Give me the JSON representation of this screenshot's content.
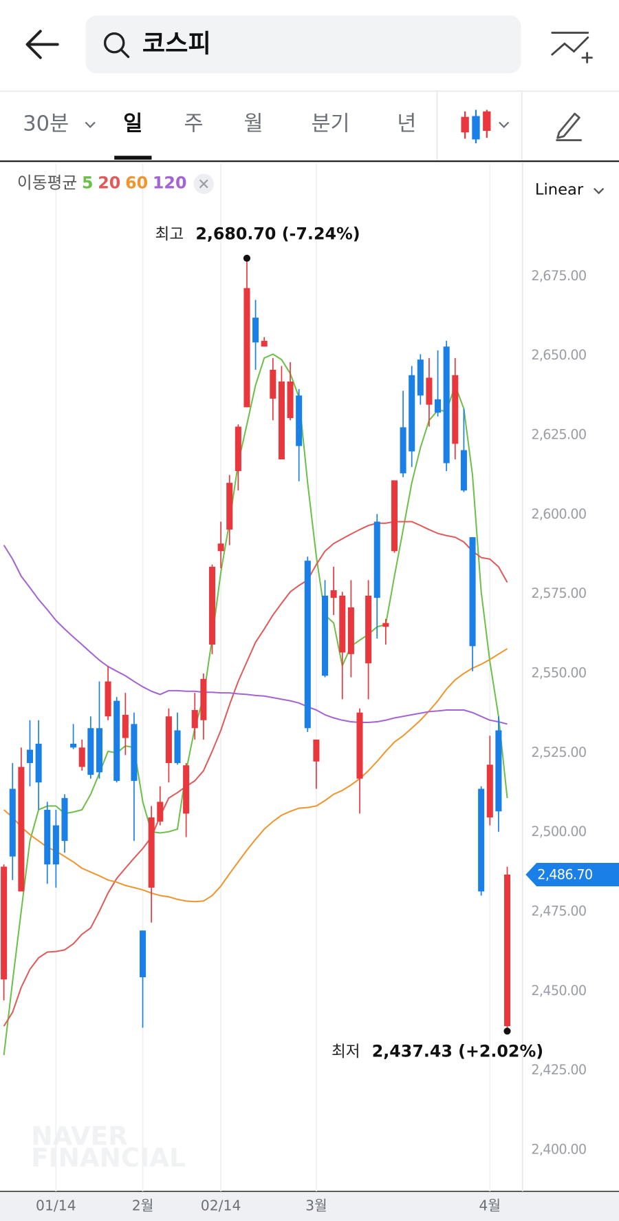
{
  "header": {
    "search_text": "코스피"
  },
  "tabs": {
    "items": [
      "30분",
      "일",
      "주",
      "월",
      "분기",
      "년"
    ],
    "selected": "일"
  },
  "chart_data": {
    "type": "candlestick",
    "scale": "Linear",
    "ma_legend_title": "이동평균",
    "watermark": [
      "NAVER",
      "FINANCIAL"
    ],
    "up_color": "#e8383d",
    "down_color": "#1a7fe6",
    "categories": [
      null,
      null,
      null,
      null,
      null,
      null,
      "01/14",
      null,
      null,
      null,
      null,
      null,
      null,
      null,
      null,
      null,
      "2월",
      null,
      null,
      null,
      null,
      null,
      null,
      null,
      null,
      "02/14",
      null,
      null,
      null,
      null,
      null,
      null,
      null,
      null,
      null,
      null,
      "3월",
      null,
      null,
      null,
      null,
      null,
      null,
      null,
      null,
      null,
      null,
      null,
      null,
      null,
      null,
      null,
      null,
      null,
      null,
      null,
      "4월",
      null,
      null
    ],
    "open": [
      2453.7,
      2513.7,
      2481.4,
      2526.0,
      2527.9,
      2507.1,
      2502.2,
      2510.8,
      2527.9,
      2520.6,
      2532.8,
      2532.8,
      2536.5,
      2541.4,
      2529.7,
      2534.1,
      2469.1,
      2482.6,
      2503.4,
      2521.8,
      2532.1,
      2505.9,
      2532.8,
      2535.3,
      2559.1,
      2588.5,
      2595.3,
      2613.7,
      2633.8,
      2662.0,
      2652.9,
      2636.5,
      2617.4,
      2630.4,
      2637.5,
      2585.5,
      2522.3,
      2574.5,
      2573.8,
      2556.6,
      2556.1,
      2516.9,
      2553.2,
      2597.8,
      2564.7,
      2588.5,
      2627.5,
      2643.9,
      2648.8,
      2634.6,
      2636.3,
      2652.9,
      2622.3,
      2620.3,
      2592.9,
      2513.7,
      2504.7,
      2532.1,
      2439.0
    ],
    "high": [
      2489.9,
      2521.8,
      2526.7,
      2535.3,
      2535.3,
      2509.6,
      2507.1,
      2512.0,
      2534.1,
      2529.2,
      2536.5,
      2547.5,
      2552.4,
      2542.6,
      2543.9,
      2537.7,
      2469.1,
      2508.3,
      2514.5,
      2539.0,
      2537.7,
      2521.8,
      2543.9,
      2550.0,
      2584.3,
      2597.8,
      2612.5,
      2628.4,
      2680.7,
      2667.6,
      2655.9,
      2649.3,
      2646.8,
      2648.0,
      2639.5,
      2586.8,
      2529.2,
      2579.4,
      2583.6,
      2575.7,
      2579.4,
      2539.0,
      2579.4,
      2600.2,
      2567.2,
      2610.8,
      2639.0,
      2646.8,
      2650.5,
      2649.3,
      2651.7,
      2654.7,
      2649.3,
      2633.3,
      2592.9,
      2514.5,
      2530.4,
      2536.5,
      2489.2
    ],
    "low": [
      2447.1,
      2485.0,
      2481.4,
      2514.5,
      2507.1,
      2483.8,
      2482.6,
      2493.6,
      2526.2,
      2519.4,
      2516.9,
      2516.9,
      2535.3,
      2515.7,
      2524.3,
      2497.3,
      2438.5,
      2471.6,
      2502.2,
      2515.7,
      2521.3,
      2498.5,
      2529.2,
      2529.2,
      2556.1,
      2583.1,
      2590.4,
      2607.6,
      2633.8,
      2645.6,
      2652.9,
      2629.7,
      2617.4,
      2629.7,
      2610.5,
      2531.6,
      2513.7,
      2548.8,
      2568.4,
      2541.9,
      2548.8,
      2505.9,
      2541.9,
      2561.0,
      2559.1,
      2588.0,
      2611.8,
      2615.0,
      2634.6,
      2627.7,
      2630.9,
      2613.7,
      2617.4,
      2607.1,
      2550.7,
      2480.1,
      2502.2,
      2500.2,
      2437.43
    ],
    "close": [
      2489.2,
      2492.4,
      2520.6,
      2521.8,
      2515.7,
      2489.9,
      2489.9,
      2497.3,
      2526.7,
      2526.7,
      2518.1,
      2518.9,
      2547.5,
      2516.2,
      2537.0,
      2516.2,
      2454.4,
      2504.7,
      2509.6,
      2536.5,
      2521.8,
      2521.1,
      2538.5,
      2548.3,
      2583.6,
      2590.9,
      2610.0,
      2627.7,
      2671.3,
      2654.2,
      2654.7,
      2645.6,
      2641.9,
      2641.9,
      2621.6,
      2532.8,
      2529.2,
      2549.3,
      2576.2,
      2574.5,
      2570.8,
      2537.7,
      2574.5,
      2573.8,
      2565.9,
      2610.8,
      2613.0,
      2619.9,
      2637.5,
      2643.1,
      2632.1,
      2616.2,
      2643.9,
      2607.6,
      2558.6,
      2481.4,
      2521.3,
      2506.6,
      2486.7
    ],
    "series": [
      {
        "name": "5",
        "color": "#6cc04a",
        "values": [
          2429.9,
          2453.2,
          2475.2,
          2497.3,
          2507.1,
          2508.3,
          2508.3,
          2505.9,
          2506.4,
          2507.1,
          2512.0,
          2518.6,
          2525.5,
          2525.0,
          2527.2,
          2526.7,
          2509.6,
          2500.2,
          2499.8,
          2500.2,
          2501.0,
          2519.4,
          2532.8,
          2542.6,
          2561.0,
          2581.9,
          2597.8,
          2616.2,
          2628.4,
          2640.7,
          2649.3,
          2650.5,
          2648.8,
          2644.4,
          2637.0,
          2610.0,
          2586.8,
          2568.4,
          2565.9,
          2552.4,
          2558.6,
          2560.5,
          2562.3,
          2564.7,
          2565.4,
          2580.6,
          2595.3,
          2610.0,
          2621.1,
          2629.7,
          2632.8,
          2632.6,
          2640.7,
          2633.3,
          2612.5,
          2575.7,
          2553.7,
          2536.5,
          2510.8
        ]
      },
      {
        "name": "20",
        "color": "#e05a5a",
        "values": [
          2439.0,
          2443.4,
          2451.2,
          2456.9,
          2460.5,
          2462.3,
          2462.5,
          2463.0,
          2464.9,
          2467.9,
          2469.9,
          2475.2,
          2480.9,
          2485.5,
          2488.7,
          2491.9,
          2494.9,
          2498.5,
          2505.1,
          2510.8,
          2512.5,
          2514.5,
          2516.2,
          2519.4,
          2525.5,
          2532.1,
          2540.2,
          2547.5,
          2553.7,
          2559.8,
          2564.0,
          2568.4,
          2572.1,
          2575.7,
          2577.7,
          2579.4,
          2584.3,
          2588.5,
          2590.9,
          2592.4,
          2593.9,
          2595.3,
          2596.6,
          2597.3,
          2597.3,
          2597.8,
          2597.8,
          2597.8,
          2596.6,
          2595.3,
          2594.1,
          2593.4,
          2592.9,
          2591.4,
          2588.5,
          2586.5,
          2586.0,
          2583.6,
          2578.7
        ]
      },
      {
        "name": "60",
        "color": "#f0952e",
        "values": [
          2507.1,
          2504.7,
          2501.7,
          2499.3,
          2497.3,
          2495.3,
          2494.1,
          2492.4,
          2490.7,
          2488.7,
          2487.5,
          2486.3,
          2485.0,
          2484.3,
          2483.3,
          2482.6,
          2481.9,
          2480.9,
          2480.1,
          2479.7,
          2478.9,
          2478.4,
          2478.2,
          2478.4,
          2480.1,
          2483.1,
          2487.0,
          2490.7,
          2494.4,
          2497.8,
          2501.0,
          2503.4,
          2505.4,
          2506.6,
          2507.6,
          2507.8,
          2508.3,
          2510.0,
          2512.0,
          2513.2,
          2514.9,
          2516.9,
          2519.4,
          2522.3,
          2525.5,
          2528.4,
          2530.4,
          2532.8,
          2535.3,
          2538.2,
          2541.4,
          2545.1,
          2548.0,
          2550.0,
          2551.7,
          2552.9,
          2554.4,
          2556.1,
          2557.8
        ]
      },
      {
        "name": "120",
        "color": "#a463d2",
        "values": [
          2590.4,
          2586.0,
          2580.6,
          2577.0,
          2573.3,
          2570.1,
          2566.7,
          2564.0,
          2561.5,
          2559.1,
          2556.6,
          2554.2,
          2552.2,
          2550.7,
          2549.3,
          2547.5,
          2545.8,
          2544.4,
          2543.4,
          2544.6,
          2544.6,
          2544.4,
          2544.4,
          2544.1,
          2544.1,
          2543.9,
          2543.9,
          2543.6,
          2543.4,
          2543.1,
          2542.9,
          2542.4,
          2541.9,
          2541.4,
          2540.7,
          2539.5,
          2538.5,
          2537.0,
          2536.0,
          2535.3,
          2534.8,
          2534.6,
          2534.6,
          2534.8,
          2535.3,
          2536.0,
          2536.5,
          2537.0,
          2537.5,
          2538.0,
          2538.2,
          2538.5,
          2538.5,
          2538.5,
          2537.7,
          2536.5,
          2535.3,
          2534.8,
          2534.1
        ]
      }
    ],
    "ylim": [
      2387.0,
      2710.5
    ],
    "yticks": [
      {
        "value": 2400,
        "label": "2,400.00"
      },
      {
        "value": 2425,
        "label": "2,425.00"
      },
      {
        "value": 2450,
        "label": "2,450.00"
      },
      {
        "value": 2475,
        "label": "2,475.00"
      },
      {
        "value": 2500,
        "label": "2,500.00"
      },
      {
        "value": 2525,
        "label": "2,525.00"
      },
      {
        "value": 2550,
        "label": "2,550.00"
      },
      {
        "value": 2575,
        "label": "2,575.00"
      },
      {
        "value": 2600,
        "label": "2,600.00"
      },
      {
        "value": 2625,
        "label": "2,625.00"
      },
      {
        "value": 2650,
        "label": "2,650.00"
      },
      {
        "value": 2675,
        "label": "2,675.00"
      }
    ],
    "annotations": [
      {
        "label": "최고",
        "text": "2,680.70 (-7.24%)",
        "value": 2680.7
      },
      {
        "label": "최저",
        "text": "2,437.43 (+2.02%)",
        "value": 2437.43
      }
    ],
    "current_price": {
      "value": 2486.7,
      "label": "2,486.70",
      "color": "#1a7fe6"
    }
  }
}
